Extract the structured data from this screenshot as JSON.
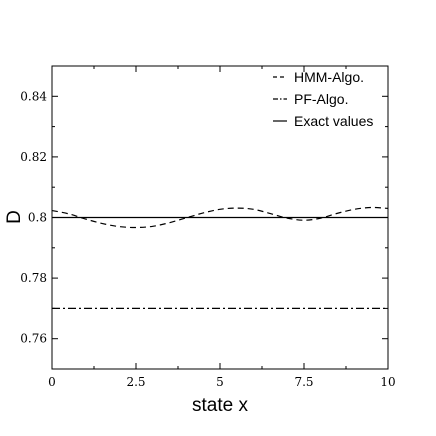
{
  "chart_data": {
    "type": "line",
    "xlabel": "state x",
    "ylabel": "D",
    "xlim": [
      0,
      10
    ],
    "ylim": [
      0.75,
      0.85
    ],
    "xticks": [
      0,
      2.5,
      5,
      7.5,
      10
    ],
    "xtick_labels": [
      "0",
      "2.5",
      "5",
      "7.5",
      "10"
    ],
    "yticks": [
      0.76,
      0.78,
      0.8,
      0.82,
      0.84
    ],
    "ytick_labels": [
      "0.76",
      "0.78",
      "0.8",
      "0.82",
      "0.84"
    ],
    "grid": false,
    "legend_position": "top-right",
    "series": [
      {
        "name": "HMM-Algo.",
        "style": "dashed",
        "color": "#000000",
        "x": [
          0,
          0.5,
          1,
          1.5,
          2,
          2.5,
          3,
          3.5,
          4,
          4.5,
          5,
          5.5,
          6,
          6.5,
          7,
          7.5,
          8,
          8.5,
          9,
          9.5,
          10
        ],
        "y": [
          0.8023,
          0.8012,
          0.7995,
          0.798,
          0.797,
          0.7967,
          0.7971,
          0.7983,
          0.7999,
          0.8015,
          0.8027,
          0.8031,
          0.8027,
          0.8013,
          0.7998,
          0.7991,
          0.7998,
          0.8014,
          0.8027,
          0.8033,
          0.803
        ]
      },
      {
        "name": "PF-Algo.",
        "style": "dashdot",
        "color": "#000000",
        "x": [
          0,
          10
        ],
        "y": [
          0.77,
          0.77
        ]
      },
      {
        "name": "Exact values",
        "style": "solid",
        "color": "#000000",
        "x": [
          0,
          10
        ],
        "y": [
          0.8,
          0.8
        ]
      }
    ]
  }
}
